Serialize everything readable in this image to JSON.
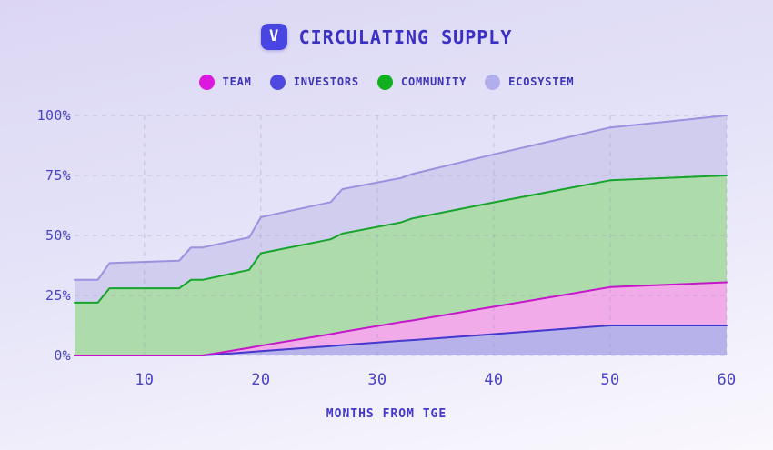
{
  "header": {
    "badge_letter": "V",
    "title": "CIRCULATING SUPPLY"
  },
  "legend": [
    {
      "label": "TEAM",
      "color": "#da18de"
    },
    {
      "label": "INVESTORS",
      "color": "#4f49e0"
    },
    {
      "label": "COMMUNITY",
      "color": "#10b01e"
    },
    {
      "label": "ECOSYSTEM",
      "color": "#b2aeec"
    }
  ],
  "chart_data": {
    "type": "area",
    "stacked": true,
    "title": "CIRCULATING SUPPLY",
    "xlabel": "MONTHS FROM TGE",
    "ylabel": "",
    "xlim": [
      4,
      60
    ],
    "ylim": [
      0,
      100
    ],
    "grid": "dashed",
    "legend_position": "top",
    "x_ticks": [
      "10",
      "20",
      "30",
      "40",
      "50",
      "60"
    ],
    "x_tick_values": [
      10,
      20,
      30,
      40,
      50,
      60
    ],
    "y_ticks": [
      "100%",
      "75%",
      "50%",
      "25%",
      "0%"
    ],
    "y_tick_values": [
      100,
      75,
      50,
      25,
      0
    ],
    "x": [
      4,
      6,
      7,
      13,
      14,
      15,
      19,
      20,
      26,
      27,
      32,
      33,
      40,
      50,
      60
    ],
    "stack_order_note": "series stacked bottom to top as listed; values are percent of supply unlocked per bucket",
    "series": [
      {
        "name": "INVESTORS",
        "line_color": "#4438cd",
        "fill_color": "#b7b3ea",
        "values": [
          0,
          0,
          0,
          0,
          0,
          0,
          1.4,
          1.8,
          3.9,
          4.3,
          6.1,
          6.4,
          8.9,
          12.5,
          12.5
        ]
      },
      {
        "name": "TEAM",
        "line_color": "#c317c9",
        "fill_color": "#f1abe9",
        "values": [
          0,
          0,
          0,
          0,
          0,
          0,
          1.8,
          2.3,
          5.0,
          5.5,
          7.8,
          8.2,
          11.4,
          16.0,
          18.0
        ]
      },
      {
        "name": "COMMUNITY",
        "line_color": "#17a42c",
        "fill_color": "#aedbac",
        "values": [
          22,
          22,
          28,
          28,
          31.5,
          31.5,
          32.5,
          38.5,
          39.5,
          41,
          41.5,
          42.5,
          43.5,
          44.5,
          44.5
        ]
      },
      {
        "name": "ECOSYSTEM",
        "line_color": "#9a92de",
        "fill_color": "#d0cdef",
        "values": [
          9.5,
          9.5,
          10.5,
          11.5,
          13.5,
          13.5,
          13.5,
          15,
          15.5,
          18.5,
          18.5,
          18.5,
          20,
          22,
          25
        ]
      }
    ],
    "totals_at_month_60": {
      "INVESTORS": 12.5,
      "TEAM": 18,
      "COMMUNITY": 44.5,
      "ECOSYSTEM": 25
    }
  }
}
